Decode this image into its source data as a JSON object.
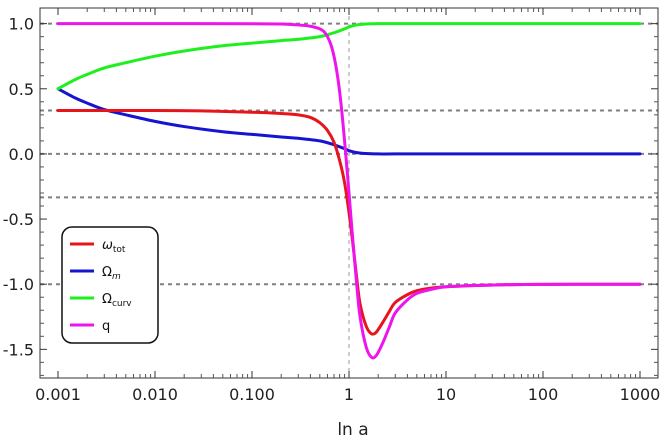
{
  "chart_data": {
    "type": "line",
    "xlabel": "ln a",
    "ylabel": "",
    "title": "",
    "x_scale": "log",
    "xlim": [
      0.001,
      1000
    ],
    "ylim": [
      -1.72,
      1.12
    ],
    "x_ticks": [
      {
        "value": 0.001,
        "label": "0.001"
      },
      {
        "value": 0.01,
        "label": "0.010"
      },
      {
        "value": 0.1,
        "label": "0.100"
      },
      {
        "value": 1,
        "label": "1"
      },
      {
        "value": 10,
        "label": "10"
      },
      {
        "value": 100,
        "label": "100"
      },
      {
        "value": 1000,
        "label": "1000"
      }
    ],
    "y_ticks": [
      {
        "value": 1.0,
        "label": "1.0"
      },
      {
        "value": 0.5,
        "label": "0.5"
      },
      {
        "value": 0.0,
        "label": "0.0"
      },
      {
        "value": -0.5,
        "label": "-0.5"
      },
      {
        "value": -1.0,
        "label": "-1.0"
      },
      {
        "value": -1.5,
        "label": "-1.5"
      }
    ],
    "reference_lines": {
      "horizontal": [
        1.0,
        0.3333,
        0.0,
        -0.3333,
        -1.0
      ],
      "vertical": [
        1.0
      ],
      "color": "#808080"
    },
    "legend": {
      "position": "lower-left",
      "entries": [
        {
          "main": "ω",
          "sub": "tot",
          "color": "#e8141b"
        },
        {
          "main": "Ω",
          "sub": "m",
          "color": "#1414d2"
        },
        {
          "main": "Ω",
          "sub": "curv",
          "color": "#1ef01e"
        },
        {
          "main": "q",
          "sub": "",
          "color": "#ee14ee"
        }
      ]
    },
    "series": [
      {
        "name": "ω_tot",
        "color": "#e8141b",
        "x": [
          0.001,
          0.003,
          0.01,
          0.03,
          0.1,
          0.2,
          0.3,
          0.4,
          0.5,
          0.6,
          0.7,
          0.8,
          0.9,
          1.0,
          1.1,
          1.2,
          1.3,
          1.5,
          1.7,
          1.9,
          2.2,
          2.6,
          3,
          4,
          5,
          7,
          10,
          20,
          50,
          100,
          300,
          1000
        ],
        "y": [
          0.333,
          0.333,
          0.333,
          0.33,
          0.32,
          0.31,
          0.3,
          0.28,
          0.24,
          0.18,
          0.09,
          -0.05,
          -0.22,
          -0.45,
          -0.7,
          -0.95,
          -1.15,
          -1.32,
          -1.38,
          -1.37,
          -1.3,
          -1.21,
          -1.14,
          -1.08,
          -1.05,
          -1.03,
          -1.02,
          -1.01,
          -1.003,
          -1.001,
          -1.0,
          -1.0
        ]
      },
      {
        "name": "Ω_m",
        "color": "#1414d2",
        "x": [
          0.001,
          0.0015,
          0.002,
          0.003,
          0.005,
          0.01,
          0.02,
          0.05,
          0.1,
          0.2,
          0.3,
          0.5,
          0.7,
          0.9,
          1.0,
          1.2,
          1.5,
          2,
          3,
          10,
          100,
          1000
        ],
        "y": [
          0.5,
          0.43,
          0.39,
          0.34,
          0.3,
          0.25,
          0.21,
          0.17,
          0.15,
          0.13,
          0.12,
          0.1,
          0.07,
          0.04,
          0.025,
          0.01,
          0.003,
          0.0,
          0.0,
          0.0,
          0.0,
          0.0
        ]
      },
      {
        "name": "Ω_curv",
        "color": "#1ef01e",
        "x": [
          0.001,
          0.0015,
          0.002,
          0.003,
          0.005,
          0.01,
          0.02,
          0.05,
          0.1,
          0.2,
          0.3,
          0.5,
          0.7,
          0.9,
          1.0,
          1.2,
          1.5,
          2,
          3,
          10,
          100,
          1000
        ],
        "y": [
          0.5,
          0.57,
          0.61,
          0.66,
          0.7,
          0.75,
          0.79,
          0.83,
          0.85,
          0.87,
          0.88,
          0.9,
          0.93,
          0.96,
          0.975,
          0.99,
          0.997,
          1.0,
          1.0,
          1.0,
          1.0,
          1.0
        ]
      },
      {
        "name": "q",
        "color": "#ee14ee",
        "x": [
          0.001,
          0.01,
          0.1,
          0.2,
          0.3,
          0.4,
          0.5,
          0.55,
          0.6,
          0.65,
          0.7,
          0.75,
          0.8,
          0.85,
          0.9,
          0.95,
          1.0,
          1.1,
          1.2,
          1.3,
          1.5,
          1.7,
          1.9,
          2.2,
          2.6,
          3,
          4,
          5,
          7,
          10,
          20,
          50,
          100,
          300,
          1000
        ],
        "y": [
          1.0,
          1.0,
          0.999,
          0.997,
          0.99,
          0.98,
          0.96,
          0.94,
          0.9,
          0.84,
          0.75,
          0.63,
          0.48,
          0.3,
          0.1,
          -0.1,
          -0.3,
          -0.68,
          -1.0,
          -1.25,
          -1.48,
          -1.56,
          -1.55,
          -1.46,
          -1.33,
          -1.22,
          -1.12,
          -1.07,
          -1.04,
          -1.02,
          -1.01,
          -1.003,
          -1.001,
          -1.0,
          -1.0
        ]
      }
    ]
  }
}
